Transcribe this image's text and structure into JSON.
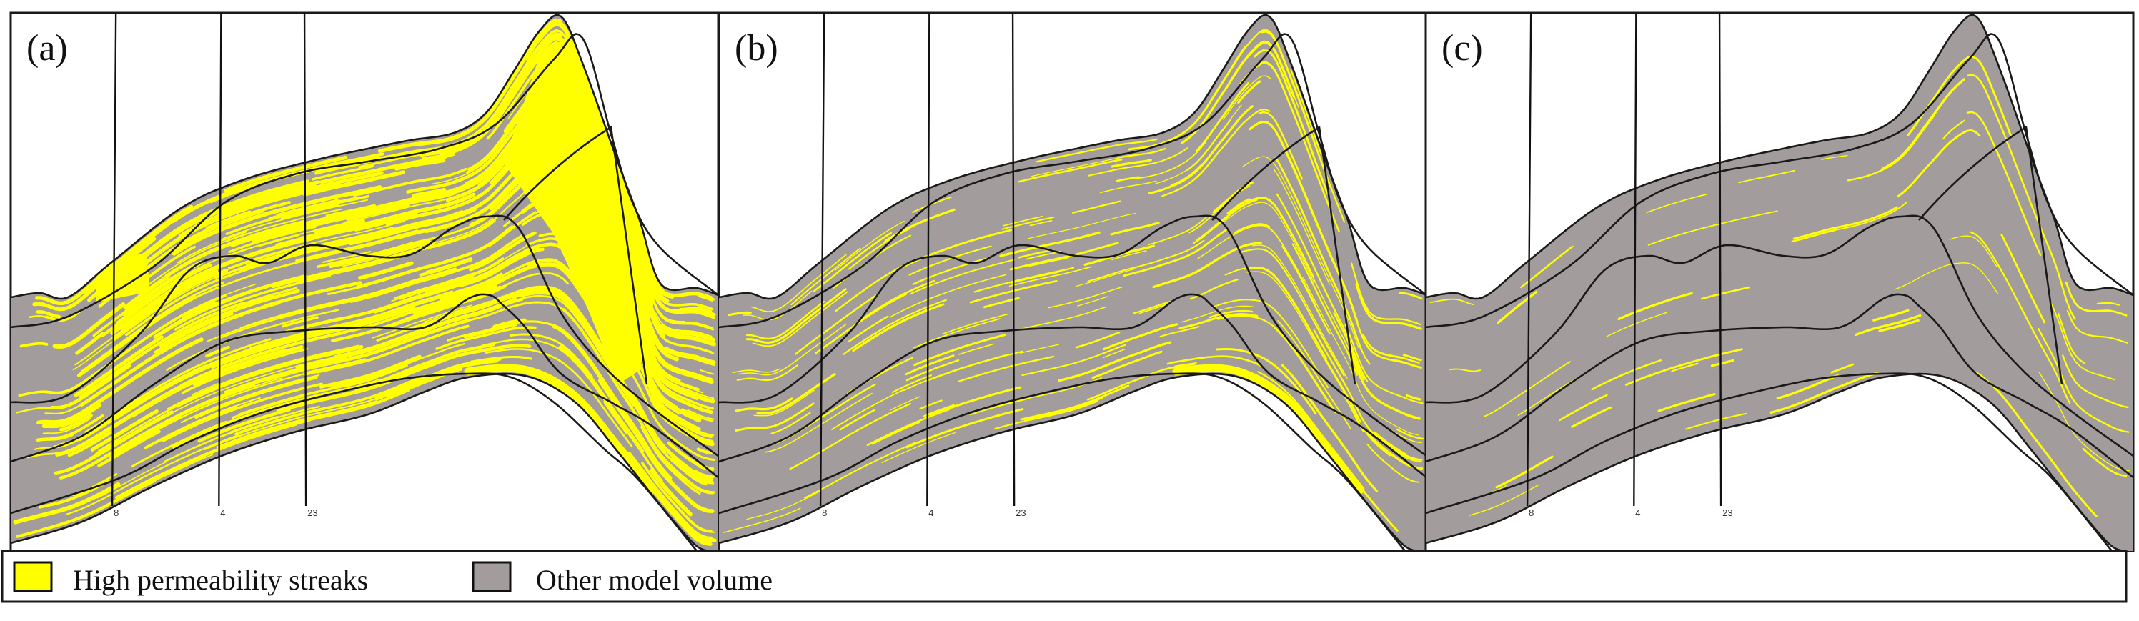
{
  "colors": {
    "high_permeability": "#ffff00",
    "other_volume": "#a39c9c",
    "line": "#1a1a1a"
  },
  "panels": [
    {
      "label": "(a)",
      "wells": [
        "8",
        "4",
        "23"
      ],
      "streak_level": 1.0
    },
    {
      "label": "(b)",
      "wells": [
        "8",
        "4",
        "23"
      ],
      "streak_level": 0.45
    },
    {
      "label": "(c)",
      "wells": [
        "8",
        "4",
        "23"
      ],
      "streak_level": 0.12
    }
  ],
  "legend": {
    "items": [
      {
        "label": "High permeability streaks",
        "swatch": "high_permeability"
      },
      {
        "label": "Other model volume",
        "swatch": "other_volume"
      }
    ]
  }
}
